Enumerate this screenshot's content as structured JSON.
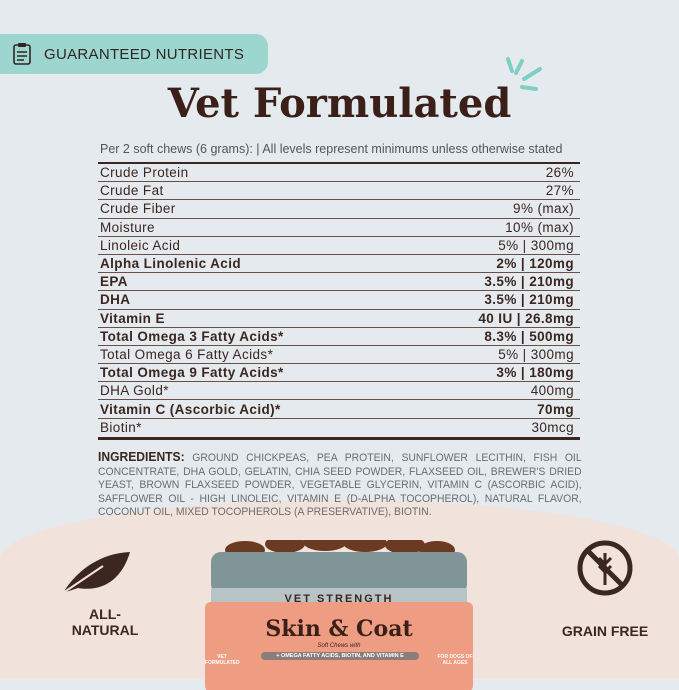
{
  "badge": {
    "icon": "clipboard-icon",
    "label": "GUARANTEED NUTRIENTS"
  },
  "title": "Vet Formulated",
  "subtitle": "Per 2 soft chews (6 grams):  |  All levels represent minimums unless otherwise stated",
  "nutrients": [
    {
      "name": "Crude Protein",
      "value": "26%",
      "bold": false
    },
    {
      "name": "Crude Fat",
      "value": "27%",
      "bold": false
    },
    {
      "name": "Crude Fiber",
      "value": "9% (max)",
      "bold": false
    },
    {
      "name": "Moisture",
      "value": "10% (max)",
      "bold": false
    },
    {
      "name": "Linoleic Acid",
      "value": "5% | 300mg",
      "bold": false
    },
    {
      "name": "Alpha Linolenic Acid",
      "value": "2% | 120mg",
      "bold": true
    },
    {
      "name": "EPA",
      "value": "3.5% | 210mg",
      "bold": true
    },
    {
      "name": "DHA",
      "value": "3.5% | 210mg",
      "bold": true
    },
    {
      "name": "Vitamin E",
      "value": "40 IU | 26.8mg",
      "bold": true
    },
    {
      "name": "Total Omega 3 Fatty Acids*",
      "value": "8.3% | 500mg",
      "bold": true
    },
    {
      "name": "Total Omega 6 Fatty Acids*",
      "value": "5% | 300mg",
      "bold": false
    },
    {
      "name": "Total Omega 9 Fatty Acids*",
      "value": "3% | 180mg",
      "bold": true
    },
    {
      "name": "DHA Gold*",
      "value": "400mg",
      "bold": false
    },
    {
      "name": "Vitamin C (Ascorbic Acid)*",
      "value": "70mg",
      "bold": true
    },
    {
      "name": "Biotin*",
      "value": "30mcg",
      "bold": false
    }
  ],
  "ingredients": {
    "label": "INGREDIENTS:",
    "text": "GROUND CHICKPEAS, PEA PROTEIN, SUNFLOWER LECITHIN, FISH OIL CONCENTRATE, DHA GOLD, GELATIN, CHIA SEED POWDER, FLAXSEED OIL, BREWER'S DRIED YEAST, BROWN FLAXSEED POWDER, VEGETABLE GLYCERIN, VITAMIN C (ASCORBIC ACID), SAFFLOWER OIL - HIGH LINOLEIC, VITAMIN E (D-ALPHA TOCOPHEROL), NATURAL FLAVOR, COCONUT OIL, MIXED TOCOPHEROLS (A PRESERVATIVE), BIOTIN."
  },
  "features": [
    {
      "icon": "leaf-icon",
      "label": "ALL-\nNATURAL"
    },
    {
      "icon": "no-grain-icon",
      "label": "GRAIN FREE"
    }
  ],
  "product": {
    "strength": "VET STRENGTH",
    "name": "Skin & Coat",
    "tagline": "Soft Chews with",
    "benefits": "+ OMEGA FATTY ACIDS, BIOTIN, AND VITAMIN E",
    "left_badge": "VET FORMULATED",
    "right_badge": "FOR DOGS OF ALL AGES"
  },
  "colors": {
    "brown": "#3b2620",
    "teal": "#9dd6cf",
    "label": "#ee9c82",
    "lid": "#7f9598"
  }
}
